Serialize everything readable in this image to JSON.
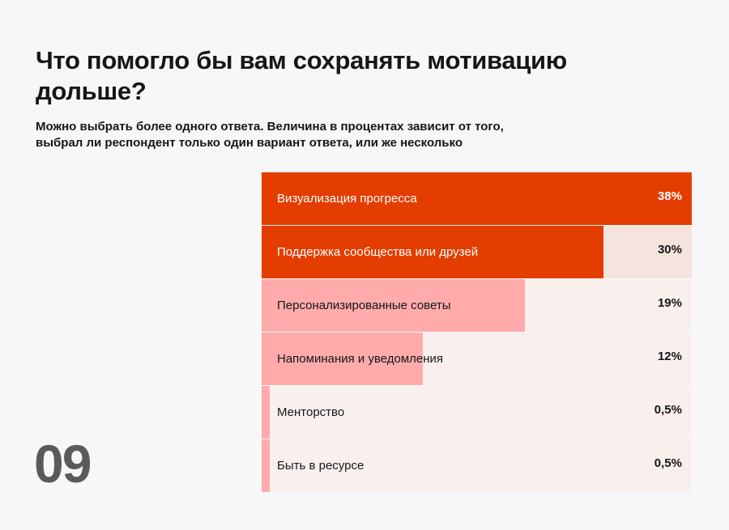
{
  "title": "Что помогло бы вам сохранять мотивацию дольше?",
  "subtitle": "Можно выбрать более одного ответа. Величина в процентах зависит от того, выбрал ли респондент только один вариант ответа, или же несколько",
  "page_number": "09",
  "colors": {
    "primary": "#e33d00",
    "secondary": "#ffabab",
    "track": "#f9f0ee",
    "track_alt": "#f5e3dd"
  },
  "chart_data": {
    "type": "bar",
    "orientation": "horizontal",
    "title": "Что помогло бы вам сохранять мотивацию дольше?",
    "categories": [
      "Визуализация прогресса",
      "Поддержка сообщества или друзей",
      "Персонализированные советы",
      "Напоминания и уведомления",
      "Менторство",
      "Быть в ресурсе"
    ],
    "values": [
      38,
      30,
      19,
      12,
      0.5,
      0.5
    ],
    "value_labels": [
      "38%",
      "30%",
      "19%",
      "12%",
      "0,5%",
      "0,5%"
    ],
    "bar_fill": [
      1.0,
      0.795,
      0.612,
      0.375,
      0.019,
      0.019
    ],
    "bar_colors": [
      "#e33d00",
      "#e33d00",
      "#ffabab",
      "#ffabab",
      "#ffabab",
      "#ffabab"
    ],
    "unit": "%"
  }
}
